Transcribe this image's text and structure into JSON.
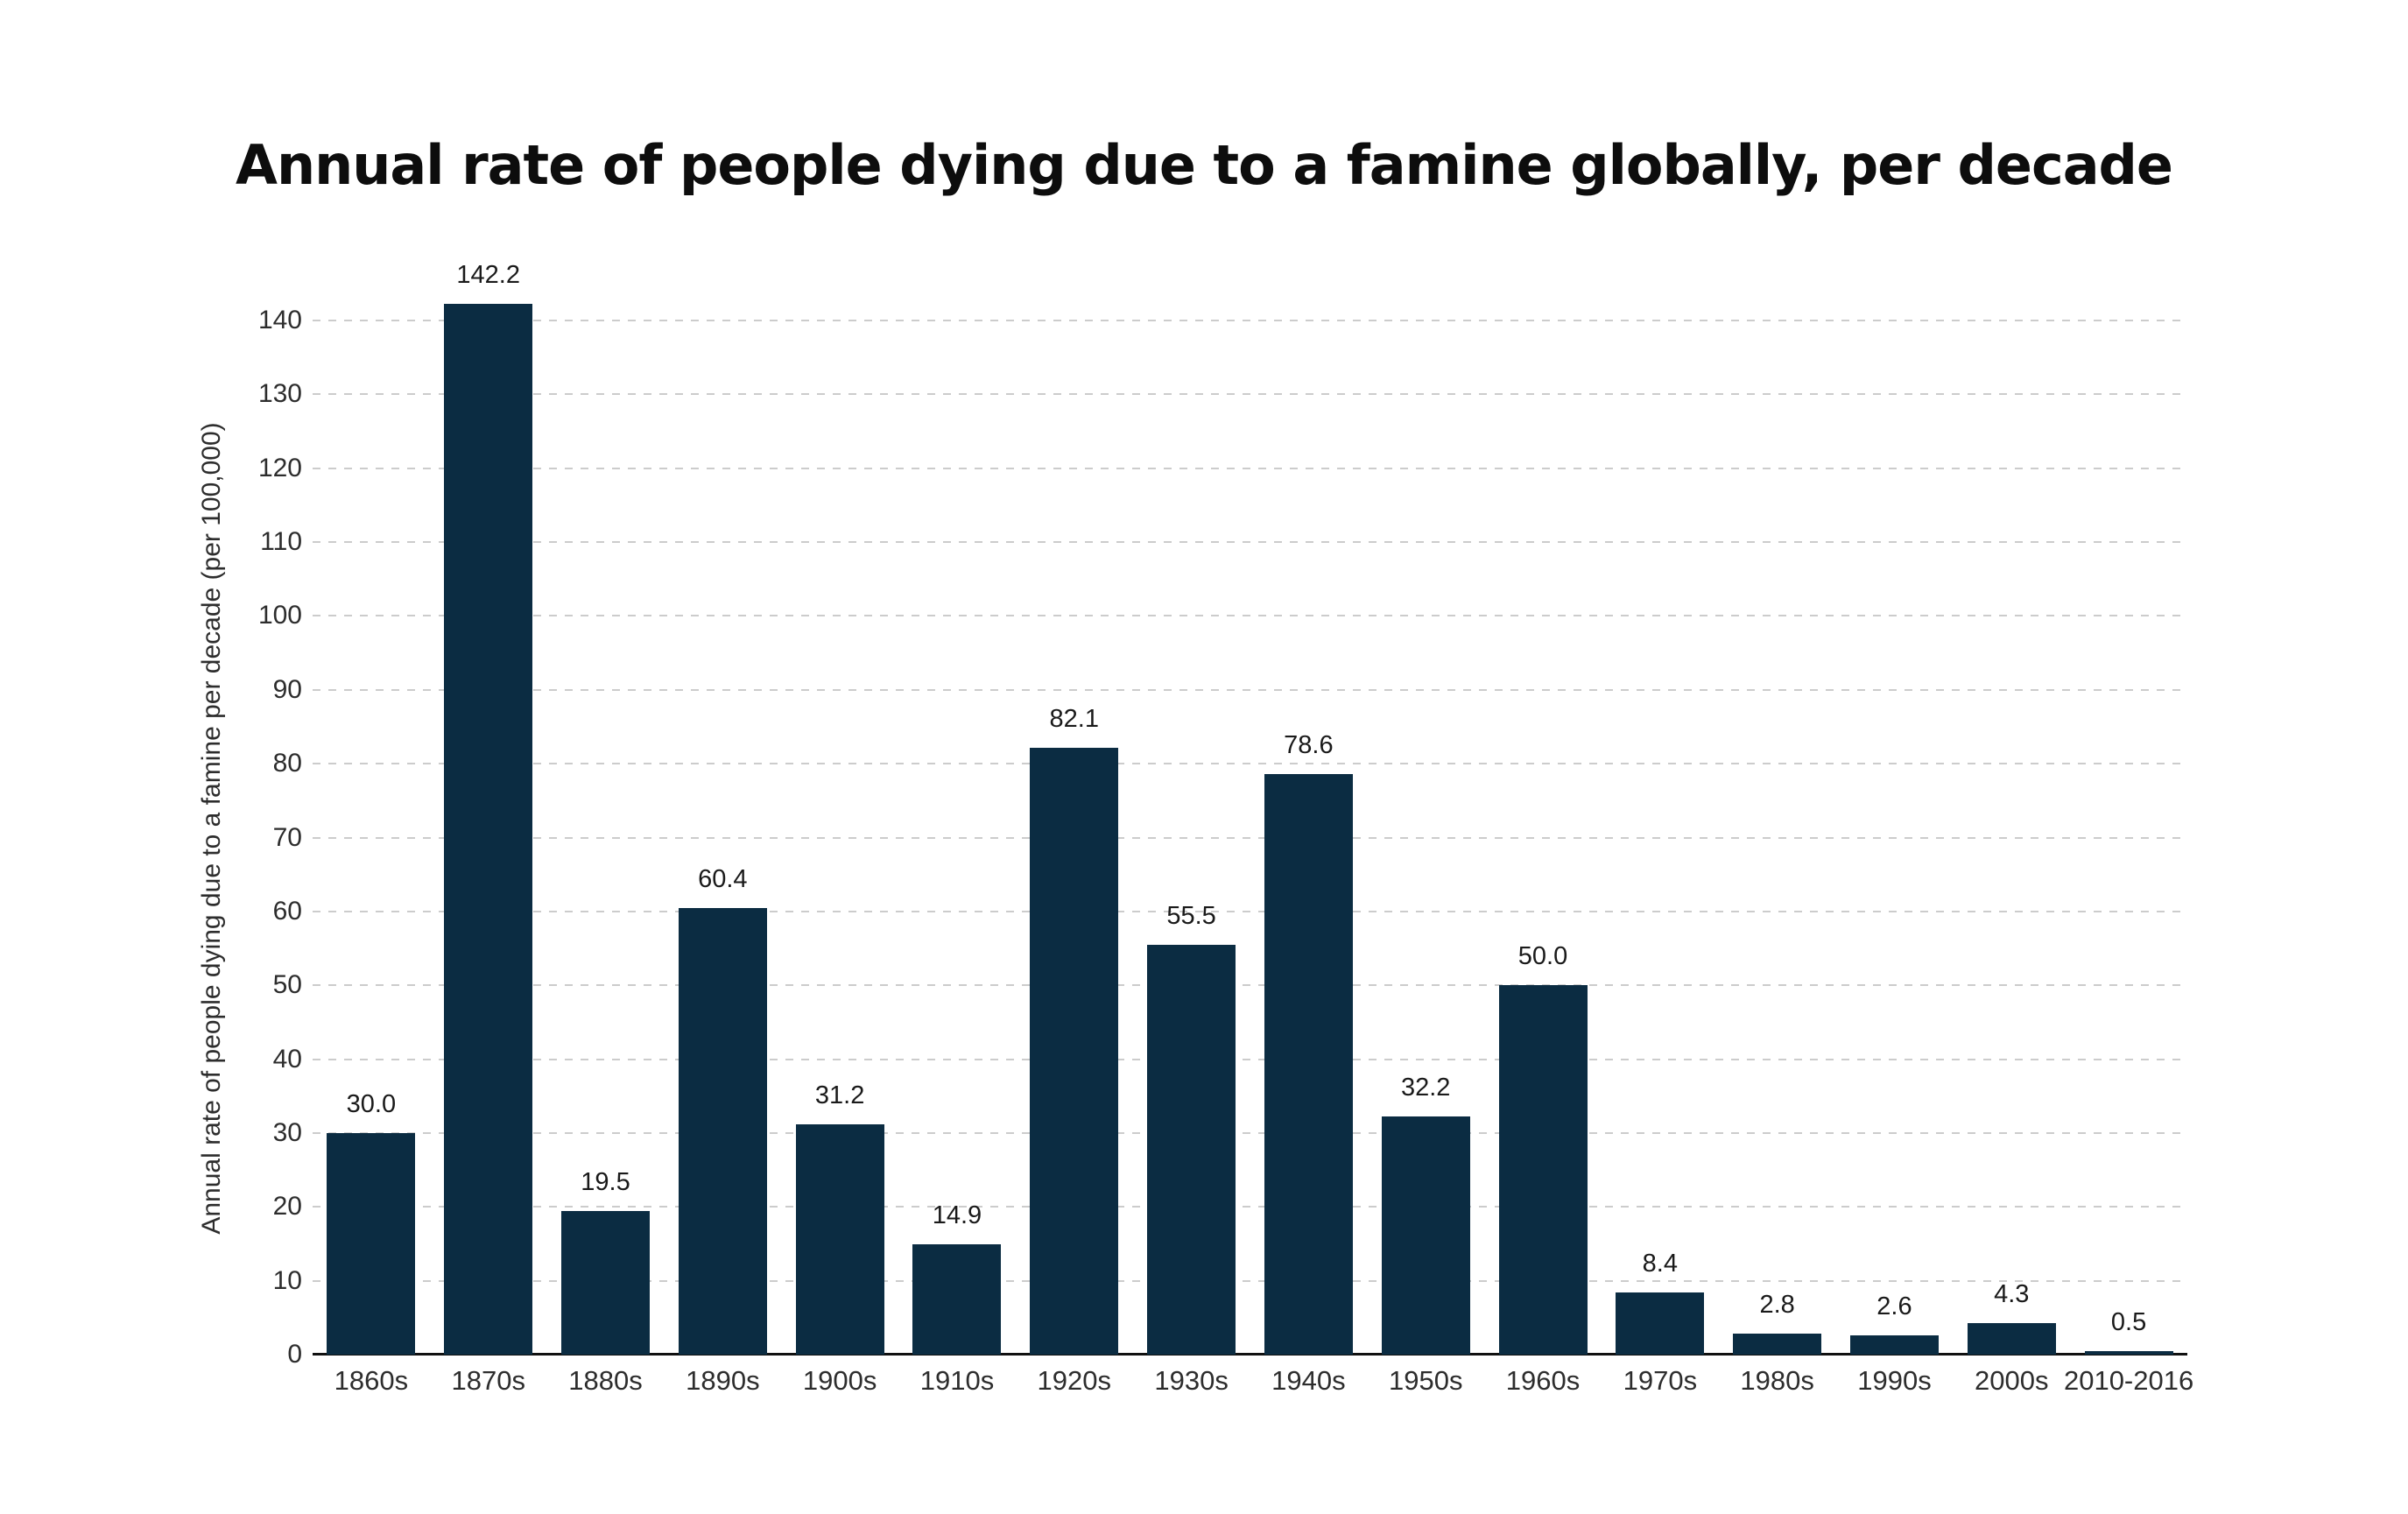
{
  "title": "Annual rate of people dying due to a famine globally, per decade",
  "colors": {
    "bar": "#0b2c42",
    "gridline": "#cccccc",
    "axis_line": "#111111",
    "tick_text": "#2d2d2d",
    "value_label_text": "#1a1a1a",
    "title_text": "#0d0d0d",
    "background": "#ffffff"
  },
  "chart_data": {
    "type": "bar",
    "title": "Annual rate of people dying due to a famine globally, per decade",
    "xlabel": "",
    "ylabel": "Annual rate of people dying due to a famine per decade (per 100,000)",
    "categories": [
      "1860s",
      "1870s",
      "1880s",
      "1890s",
      "1900s",
      "1910s",
      "1920s",
      "1930s",
      "1940s",
      "1950s",
      "1960s",
      "1970s",
      "1980s",
      "1990s",
      "2000s",
      "2010-2016"
    ],
    "values": [
      30.0,
      142.2,
      19.5,
      60.4,
      31.2,
      14.9,
      82.1,
      55.5,
      78.6,
      32.2,
      50.0,
      8.4,
      2.8,
      2.6,
      4.3,
      0.5
    ],
    "value_labels": [
      "30.0",
      "142.2",
      "19.5",
      "60.4",
      "31.2",
      "14.9",
      "82.1",
      "55.5",
      "78.6",
      "32.2",
      "50.0",
      "8.4",
      "2.8",
      "2.6",
      "4.3",
      "0.5"
    ],
    "ylim": [
      0,
      140
    ],
    "yticks": [
      0,
      10,
      20,
      30,
      40,
      50,
      60,
      70,
      80,
      90,
      100,
      110,
      120,
      130,
      140
    ],
    "grid": "horizontal dashed gridlines",
    "legend": "none",
    "bar_color": "#0b2c42"
  }
}
